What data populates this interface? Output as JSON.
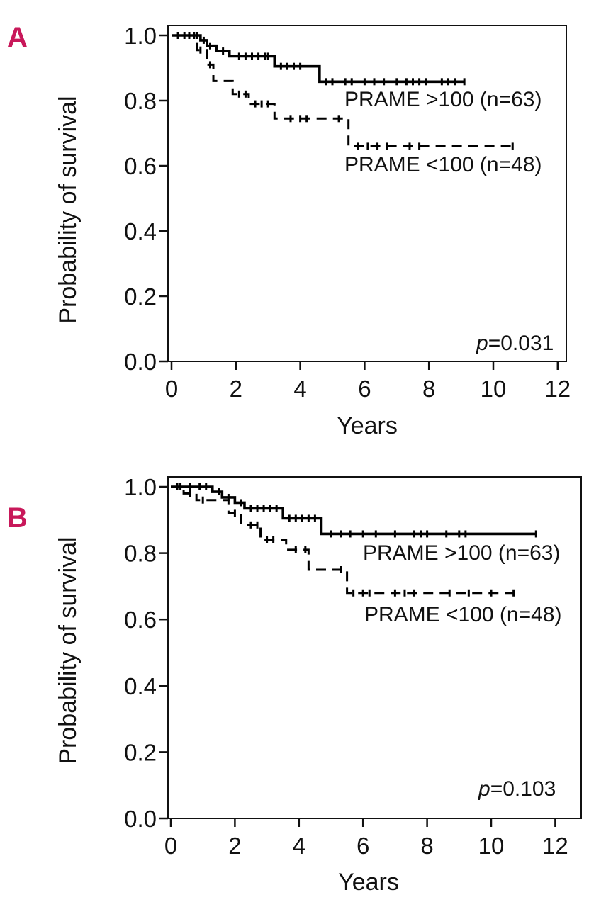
{
  "chart_data": [
    {
      "panel": "A",
      "type": "line",
      "subtype": "kaplan-meier",
      "xlabel": "Years",
      "ylabel": "Probability of survival",
      "xlim": [
        -0.3,
        12.6
      ],
      "ylim": [
        0,
        1.02
      ],
      "xticks": [
        0,
        2,
        4,
        6,
        8,
        10,
        12
      ],
      "yticks": [
        "0.0",
        "0.2",
        "0.4",
        "0.6",
        "0.8",
        "1.0"
      ],
      "pvalue": {
        "prefix": "p",
        "value": "=0.031"
      },
      "series": [
        {
          "name": "PRAME >100 (n=63)",
          "style": "solid",
          "steps": [
            [
              0,
              1.0
            ],
            [
              0.9,
              0.985
            ],
            [
              1.1,
              0.968
            ],
            [
              1.4,
              0.952
            ],
            [
              1.8,
              0.936
            ],
            [
              3.2,
              0.905
            ],
            [
              4.6,
              0.858
            ],
            [
              9.1,
              0.858
            ]
          ],
          "censored": [
            [
              0.2,
              1.0
            ],
            [
              0.4,
              1.0
            ],
            [
              0.55,
              1.0
            ],
            [
              0.7,
              1.0
            ],
            [
              0.8,
              1.0
            ],
            [
              1.0,
              0.985
            ],
            [
              1.2,
              0.968
            ],
            [
              1.6,
              0.952
            ],
            [
              2.1,
              0.936
            ],
            [
              2.3,
              0.936
            ],
            [
              2.5,
              0.936
            ],
            [
              2.7,
              0.936
            ],
            [
              2.9,
              0.936
            ],
            [
              3.0,
              0.936
            ],
            [
              3.4,
              0.905
            ],
            [
              3.6,
              0.905
            ],
            [
              3.8,
              0.905
            ],
            [
              4.0,
              0.905
            ],
            [
              4.8,
              0.858
            ],
            [
              5.0,
              0.858
            ],
            [
              5.4,
              0.858
            ],
            [
              5.6,
              0.858
            ],
            [
              6.0,
              0.858
            ],
            [
              6.3,
              0.858
            ],
            [
              6.6,
              0.858
            ],
            [
              7.0,
              0.858
            ],
            [
              7.3,
              0.858
            ],
            [
              7.5,
              0.858
            ],
            [
              7.7,
              0.858
            ],
            [
              7.9,
              0.858
            ],
            [
              8.4,
              0.858
            ],
            [
              8.6,
              0.858
            ],
            [
              8.8,
              0.858
            ],
            [
              9.1,
              0.858
            ]
          ]
        },
        {
          "name": "PRAME <100 (n=48)",
          "style": "dashed",
          "steps": [
            [
              0,
              1.0
            ],
            [
              0.8,
              0.955
            ],
            [
              1.1,
              0.91
            ],
            [
              1.3,
              0.86
            ],
            [
              1.9,
              0.82
            ],
            [
              2.4,
              0.79
            ],
            [
              3.2,
              0.745
            ],
            [
              5.5,
              0.66
            ],
            [
              10.6,
              0.66
            ]
          ],
          "censored": [
            [
              0.9,
              0.955
            ],
            [
              1.2,
              0.91
            ],
            [
              2.1,
              0.82
            ],
            [
              2.3,
              0.82
            ],
            [
              2.6,
              0.79
            ],
            [
              2.8,
              0.79
            ],
            [
              3.0,
              0.79
            ],
            [
              3.7,
              0.745
            ],
            [
              4.0,
              0.745
            ],
            [
              4.2,
              0.745
            ],
            [
              5.2,
              0.745
            ],
            [
              5.8,
              0.66
            ],
            [
              6.1,
              0.66
            ],
            [
              6.4,
              0.66
            ],
            [
              6.7,
              0.66
            ],
            [
              7.4,
              0.66
            ],
            [
              7.7,
              0.66
            ],
            [
              10.6,
              0.66
            ]
          ]
        }
      ]
    },
    {
      "panel": "B",
      "type": "line",
      "subtype": "kaplan-meier",
      "xlabel": "Years",
      "ylabel": "Probability of survival",
      "xlim": [
        -0.1,
        12.6
      ],
      "ylim": [
        0,
        1.02
      ],
      "xticks": [
        0,
        2,
        4,
        6,
        8,
        10,
        12
      ],
      "yticks": [
        "0.0",
        "0.2",
        "0.4",
        "0.6",
        "0.8",
        "1.0"
      ],
      "pvalue": {
        "prefix": "p",
        "value": "=0.103"
      },
      "series": [
        {
          "name": "PRAME >100 (n=63)",
          "style": "solid",
          "steps": [
            [
              0,
              1.0
            ],
            [
              1.3,
              0.985
            ],
            [
              1.6,
              0.968
            ],
            [
              2.0,
              0.952
            ],
            [
              2.3,
              0.935
            ],
            [
              3.5,
              0.905
            ],
            [
              4.7,
              0.858
            ],
            [
              11.4,
              0.858
            ]
          ],
          "censored": [
            [
              0.3,
              1.0
            ],
            [
              0.6,
              1.0
            ],
            [
              0.9,
              1.0
            ],
            [
              1.1,
              1.0
            ],
            [
              1.5,
              0.985
            ],
            [
              1.8,
              0.968
            ],
            [
              2.2,
              0.952
            ],
            [
              2.5,
              0.935
            ],
            [
              2.7,
              0.935
            ],
            [
              2.9,
              0.935
            ],
            [
              3.1,
              0.935
            ],
            [
              3.3,
              0.935
            ],
            [
              3.7,
              0.905
            ],
            [
              3.9,
              0.905
            ],
            [
              4.1,
              0.905
            ],
            [
              4.3,
              0.905
            ],
            [
              4.5,
              0.905
            ],
            [
              5.0,
              0.858
            ],
            [
              5.3,
              0.858
            ],
            [
              5.6,
              0.858
            ],
            [
              6.0,
              0.858
            ],
            [
              6.4,
              0.858
            ],
            [
              7.0,
              0.858
            ],
            [
              7.6,
              0.858
            ],
            [
              7.8,
              0.858
            ],
            [
              8.0,
              0.858
            ],
            [
              8.6,
              0.858
            ],
            [
              9.0,
              0.858
            ],
            [
              9.2,
              0.858
            ],
            [
              11.4,
              0.858
            ]
          ]
        },
        {
          "name": "PRAME <100 (n=48)",
          "style": "dashed",
          "steps": [
            [
              0,
              1.0
            ],
            [
              0.4,
              0.98
            ],
            [
              0.8,
              0.96
            ],
            [
              1.8,
              0.92
            ],
            [
              2.2,
              0.885
            ],
            [
              2.8,
              0.84
            ],
            [
              3.6,
              0.81
            ],
            [
              4.3,
              0.75
            ],
            [
              5.5,
              0.68
            ],
            [
              10.7,
              0.68
            ]
          ],
          "censored": [
            [
              0.2,
              1.0
            ],
            [
              0.6,
              0.98
            ],
            [
              1.0,
              0.96
            ],
            [
              2.0,
              0.92
            ],
            [
              2.5,
              0.885
            ],
            [
              2.7,
              0.885
            ],
            [
              3.0,
              0.84
            ],
            [
              3.2,
              0.84
            ],
            [
              3.9,
              0.81
            ],
            [
              4.2,
              0.81
            ],
            [
              5.3,
              0.75
            ],
            [
              5.7,
              0.68
            ],
            [
              6.0,
              0.68
            ],
            [
              6.2,
              0.68
            ],
            [
              7.0,
              0.68
            ],
            [
              7.3,
              0.68
            ],
            [
              7.6,
              0.68
            ],
            [
              8.7,
              0.68
            ],
            [
              9.3,
              0.68
            ],
            [
              10.0,
              0.68
            ],
            [
              10.7,
              0.68
            ]
          ]
        }
      ]
    }
  ]
}
